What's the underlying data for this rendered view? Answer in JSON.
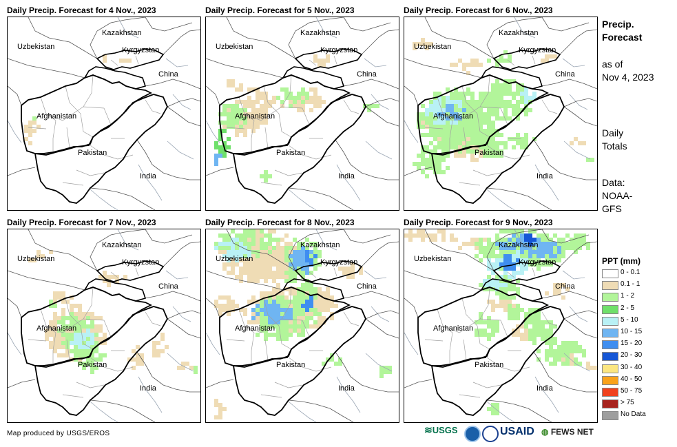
{
  "panels": [
    {
      "title": "Daily Precip. Forecast for 4 Nov., 2023",
      "day": 0
    },
    {
      "title": "Daily Precip. Forecast for 5 Nov., 2023",
      "day": 1
    },
    {
      "title": "Daily Precip. Forecast for 6 Nov., 2023",
      "day": 2
    },
    {
      "title": "Daily Precip. Forecast for 7 Nov., 2023",
      "day": 3
    },
    {
      "title": "Daily Precip. Forecast for 8 Nov., 2023",
      "day": 4
    },
    {
      "title": "Daily Precip. Forecast for 9 Nov., 2023",
      "day": 5
    }
  ],
  "map_labels": {
    "kazakhstan": "Kazakhstan",
    "uzbekistan": "Uzbekistan",
    "kyrgyzstan": "Kyrgyzstan",
    "china": "China",
    "afghanistan": "Afghanistan",
    "pakistan": "Pakistan",
    "india": "India"
  },
  "sidebar": {
    "title_line1": "Precip.",
    "title_line2": "Forecast",
    "asof_line1": "as of",
    "asof_line2": "Nov 4, 2023",
    "totals_line1": "Daily",
    "totals_line2": "Totals",
    "data_line1": "Data:",
    "data_line2": "NOAA-",
    "data_line3": "GFS"
  },
  "legend": {
    "title": "PPT (mm)",
    "items": [
      {
        "label": "0 - 0.1",
        "color": "#ffffff"
      },
      {
        "label": "0.1 - 1",
        "color": "#efdcb5"
      },
      {
        "label": "1 - 2",
        "color": "#b2f59a"
      },
      {
        "label": "2 - 5",
        "color": "#6fe06a"
      },
      {
        "label": "5 - 10",
        "color": "#b9f1f5"
      },
      {
        "label": "10 - 15",
        "color": "#6fb5f2"
      },
      {
        "label": "15 - 20",
        "color": "#3f8ef0"
      },
      {
        "label": "20 - 30",
        "color": "#1556d6"
      },
      {
        "label": "30 - 40",
        "color": "#fce680"
      },
      {
        "label": "40 - 50",
        "color": "#f9a21b"
      },
      {
        "label": "50 - 75",
        "color": "#f0421e"
      },
      {
        "label": "> 75",
        "color": "#a8231e"
      },
      {
        "label": "No Data",
        "color": "#9e9e9e"
      }
    ]
  },
  "credit": "Map produced by USGS/EROS",
  "logos": {
    "usgs": "USGS",
    "usaid": "USAID",
    "fewsnet": "FEWS NET"
  }
}
